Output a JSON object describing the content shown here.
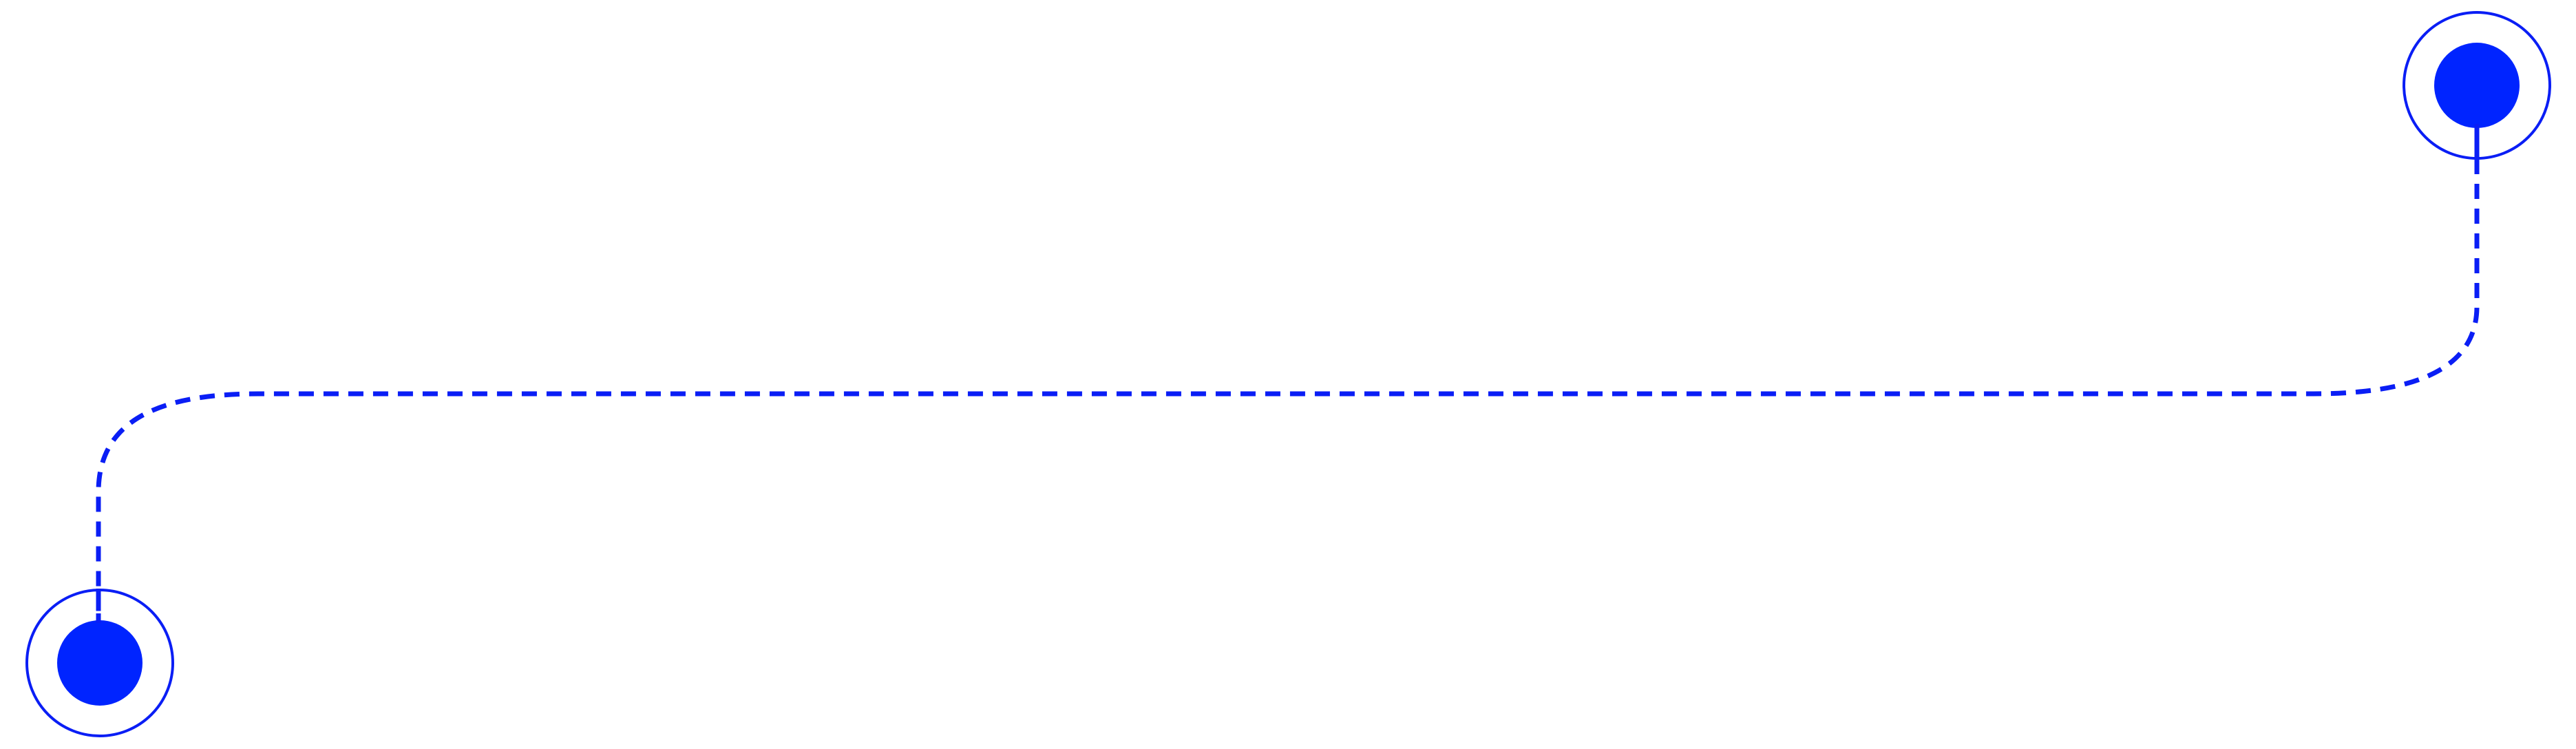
{
  "diagram": {
    "type": "connector",
    "connector_style": "dashed",
    "corner_style": "rounded",
    "endpoints": [
      {
        "name": "start-node",
        "shape": "target-ring"
      },
      {
        "name": "end-node",
        "shape": "target-ring"
      }
    ]
  },
  "colors": {
    "background": "#ffffff",
    "stroke": "#0a1ef5",
    "node_fill": "#0024ff"
  }
}
